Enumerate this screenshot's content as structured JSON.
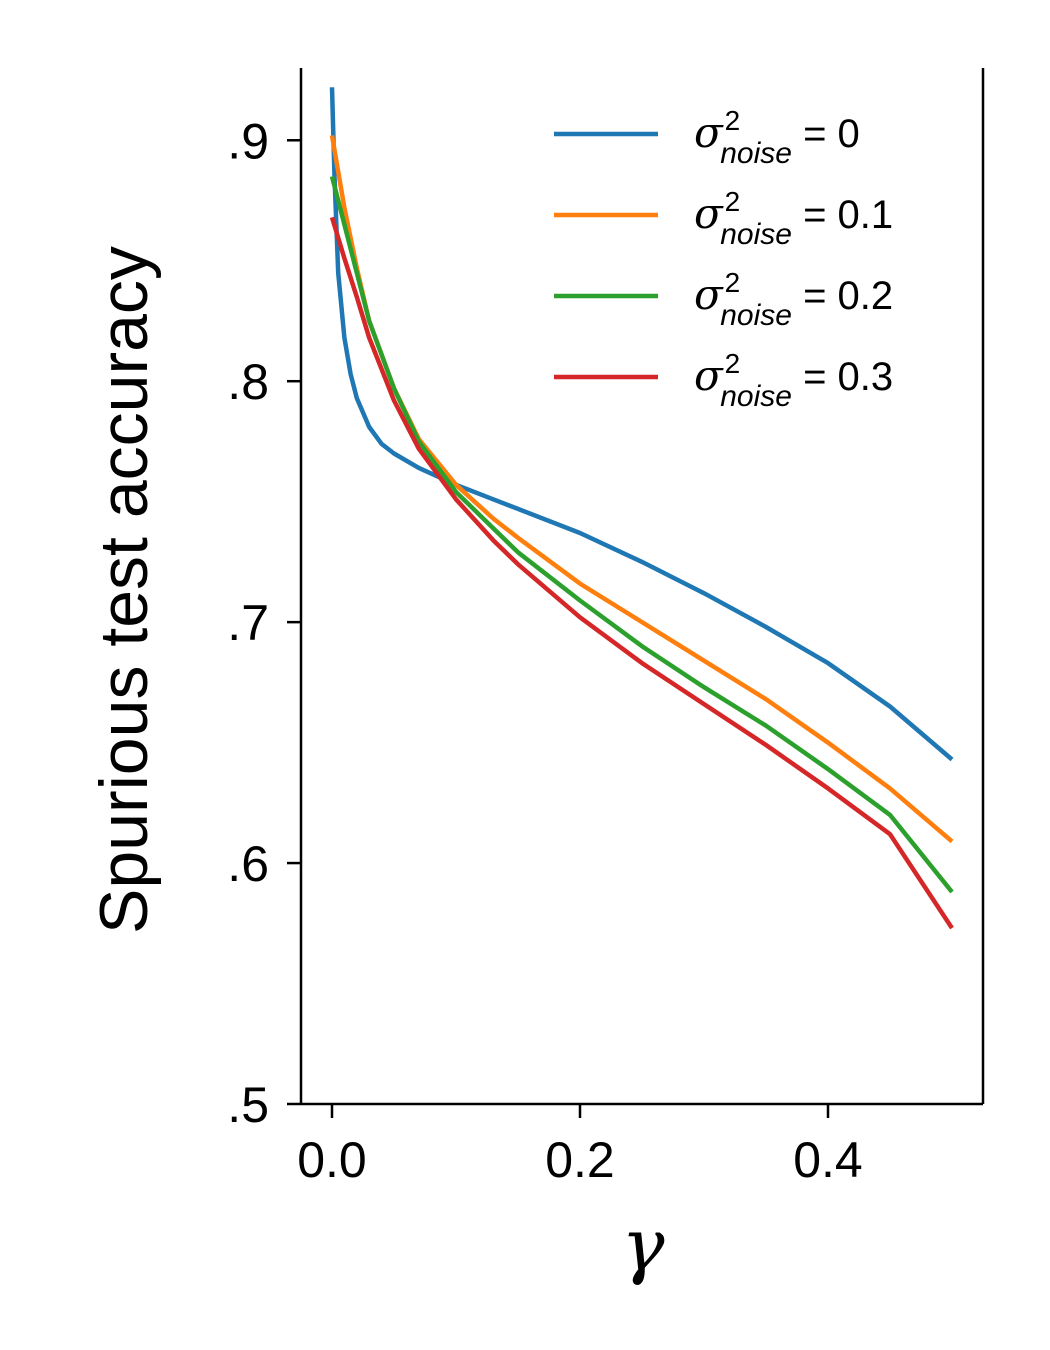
{
  "chart_data": {
    "type": "line",
    "title": "",
    "xlabel": "γ",
    "ylabel": "Spurious test accuracy",
    "xlim": [
      -0.025,
      0.525
    ],
    "ylim": [
      0.5,
      0.93
    ],
    "xticks": [
      0.0,
      0.2,
      0.4
    ],
    "xtick_labels": [
      "0.0",
      "0.2",
      "0.4"
    ],
    "yticks": [
      0.5,
      0.6,
      0.7,
      0.8,
      0.9
    ],
    "ytick_labels": [
      ".5",
      ".6",
      ".7",
      ".8",
      ".9"
    ],
    "grid": false,
    "legend_position": "top-right",
    "series": [
      {
        "name": "σ²noise = 0",
        "legend": {
          "symbol": "σ",
          "sup": "2",
          "sub": "noise",
          "rest": " = 0"
        },
        "color": "#1f77b4",
        "x": [
          0.0,
          0.002,
          0.005,
          0.01,
          0.015,
          0.02,
          0.03,
          0.04,
          0.05,
          0.07,
          0.1,
          0.13,
          0.15,
          0.2,
          0.25,
          0.3,
          0.35,
          0.4,
          0.45,
          0.5
        ],
        "y": [
          0.922,
          0.885,
          0.845,
          0.818,
          0.803,
          0.793,
          0.781,
          0.774,
          0.77,
          0.764,
          0.757,
          0.751,
          0.747,
          0.737,
          0.725,
          0.712,
          0.698,
          0.683,
          0.665,
          0.643
        ]
      },
      {
        "name": "σ²noise = 0.1",
        "legend": {
          "symbol": "σ",
          "sup": "2",
          "sub": "noise",
          "rest": " = 0.1"
        },
        "color": "#ff7f0e",
        "x": [
          0.0,
          0.01,
          0.02,
          0.03,
          0.05,
          0.07,
          0.1,
          0.13,
          0.15,
          0.2,
          0.25,
          0.3,
          0.35,
          0.4,
          0.45,
          0.5
        ],
        "y": [
          0.902,
          0.872,
          0.847,
          0.825,
          0.797,
          0.776,
          0.757,
          0.743,
          0.735,
          0.716,
          0.7,
          0.684,
          0.668,
          0.65,
          0.631,
          0.609
        ]
      },
      {
        "name": "σ²noise = 0.2",
        "legend": {
          "symbol": "σ",
          "sup": "2",
          "sub": "noise",
          "rest": " = 0.2"
        },
        "color": "#2ca02c",
        "x": [
          0.0,
          0.01,
          0.02,
          0.03,
          0.05,
          0.07,
          0.1,
          0.13,
          0.15,
          0.2,
          0.25,
          0.3,
          0.35,
          0.4,
          0.45,
          0.5
        ],
        "y": [
          0.885,
          0.865,
          0.845,
          0.825,
          0.797,
          0.775,
          0.754,
          0.739,
          0.729,
          0.709,
          0.69,
          0.673,
          0.657,
          0.639,
          0.62,
          0.588
        ]
      },
      {
        "name": "σ²noise = 0.3",
        "legend": {
          "symbol": "σ",
          "sup": "2",
          "sub": "noise",
          "rest": " = 0.3"
        },
        "color": "#d62728",
        "x": [
          0.0,
          0.01,
          0.02,
          0.03,
          0.05,
          0.07,
          0.1,
          0.13,
          0.15,
          0.2,
          0.25,
          0.3,
          0.35,
          0.4,
          0.45,
          0.5
        ],
        "y": [
          0.868,
          0.851,
          0.835,
          0.818,
          0.792,
          0.772,
          0.751,
          0.734,
          0.724,
          0.702,
          0.683,
          0.666,
          0.649,
          0.631,
          0.612,
          0.573
        ]
      }
    ]
  }
}
